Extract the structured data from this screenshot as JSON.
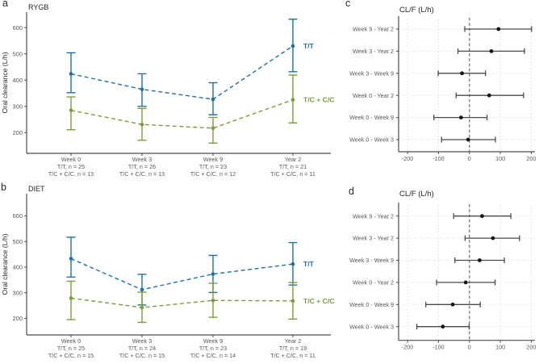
{
  "figure": {
    "background": "#ffffff",
    "axis_color": "#4d4d4d",
    "tick_text_color": "#595959",
    "title_text_color": "#262626",
    "grid_color": "#d9d9d9",
    "ref_line_color": "#808080"
  },
  "chart_data": [
    {
      "panel_label": "a",
      "type": "line",
      "title": "RYGB",
      "ylabel": "Oral clearance (L/h)",
      "yticks": [
        200,
        300,
        400,
        500,
        600
      ],
      "ylim": [
        121,
        659
      ],
      "grid": false,
      "legend_position": "right-of-last-point",
      "categories": [
        "Week 0",
        "Week 3",
        "Week 9",
        "Year 2"
      ],
      "x_tick_sublabels": [
        [
          "T/T, n = 25",
          "T/C + C/C, n = 13"
        ],
        [
          "T/T, n = 26",
          "T/C + C/C, n = 13"
        ],
        [
          "T/T, n = 23",
          "T/C + C/C, n = 12"
        ],
        [
          "T/T, n = 21",
          "T/C + C/C, n = 11"
        ]
      ],
      "series": [
        {
          "name": "T/T",
          "color": "#22709f",
          "values": [
            424,
            365,
            327,
            530
          ],
          "ci_low": [
            352,
            300,
            268,
            432
          ],
          "ci_high": [
            504,
            424,
            390,
            632
          ]
        },
        {
          "name": "T/C + C/C",
          "color": "#7d9c40",
          "values": [
            285,
            231,
            217,
            325
          ],
          "ci_low": [
            211,
            171,
            160,
            237
          ],
          "ci_high": [
            336,
            292,
            258,
            419
          ]
        }
      ]
    },
    {
      "panel_label": "b",
      "type": "line",
      "title": "DIET",
      "ylabel": "Oral clearance (L/h)",
      "yticks": [
        200,
        300,
        400,
        500,
        600
      ],
      "ylim": [
        135,
        687
      ],
      "grid": false,
      "legend_position": "right-of-last-point",
      "categories": [
        "Week 0",
        "Week 3",
        "Week 9",
        "Year 2"
      ],
      "x_tick_sublabels": [
        [
          "T/T, n = 25",
          "T/C + C/C, n = 15"
        ],
        [
          "T/T, n = 24",
          "T/C + C/C, n = 15"
        ],
        [
          "T/T, n = 23",
          "T/C + C/C, n = 14"
        ],
        [
          "T/T, n = 19",
          "T/C + C/C, n = 11"
        ]
      ],
      "series": [
        {
          "name": "T/T",
          "color": "#22709f",
          "values": [
            433,
            312,
            373,
            412
          ],
          "ci_low": [
            361,
            252,
            301,
            330
          ],
          "ci_high": [
            517,
            372,
            446,
            496
          ]
        },
        {
          "name": "T/C + C/C",
          "color": "#7d9c40",
          "values": [
            279,
            242,
            270,
            268
          ],
          "ci_low": [
            195,
            184,
            204,
            197
          ],
          "ci_high": [
            345,
            302,
            337,
            340
          ]
        }
      ]
    },
    {
      "panel_label": "c",
      "type": "forest",
      "title": "CL/F (L/h)",
      "rows": [
        "Week 9 - Year 2",
        "Week 3 - Year 2",
        "Week 3 - Week 9",
        "Week 0 - Year 2",
        "Week 0 - Week 9",
        "Week 0 - Week 3"
      ],
      "xticks": [
        -200,
        -100,
        0,
        100,
        200
      ],
      "xlim": [
        -229,
        212
      ],
      "ref_line": 0,
      "grid": true,
      "point_color": "#161616",
      "whisker_color": "#4a4a4a",
      "estimates": [
        94,
        71,
        -24,
        64,
        -27,
        -4
      ],
      "ci_low": [
        -15,
        -37,
        -101,
        -43,
        -115,
        -90
      ],
      "ci_high": [
        201,
        178,
        52,
        175,
        57,
        84
      ]
    },
    {
      "panel_label": "d",
      "type": "forest",
      "title": "CL/F (L/h)",
      "rows": [
        "Week 9 - Year 2",
        "Week 3 - Year 2",
        "Week 3 - Week 9",
        "Week 0 - Year 2",
        "Week 0 - Week 9",
        "Week 0 - Week 3"
      ],
      "xticks": [
        -200,
        -100,
        0,
        100,
        200
      ],
      "xlim": [
        -229,
        212
      ],
      "ref_line": 0,
      "grid": true,
      "point_color": "#161616",
      "whisker_color": "#4a4a4a",
      "estimates": [
        41,
        76,
        33,
        -12,
        -54,
        -86
      ],
      "ci_low": [
        -51,
        -14,
        -47,
        -106,
        -141,
        -170
      ],
      "ci_high": [
        134,
        162,
        113,
        83,
        35,
        -1
      ]
    }
  ]
}
